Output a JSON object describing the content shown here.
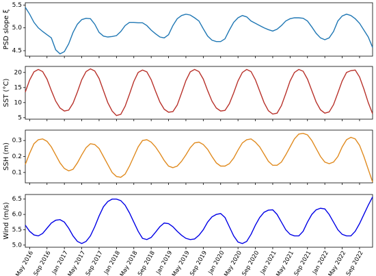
{
  "chart_data": [
    {
      "type": "line",
      "ylabel": "PSD slope ξ",
      "color": "#1f77b4",
      "x": [
        "2016-04",
        "2016-05",
        "2016-06",
        "2016-07",
        "2016-08",
        "2016-09",
        "2016-10",
        "2016-11",
        "2016-12",
        "2017-01",
        "2017-02",
        "2017-03",
        "2017-04",
        "2017-05",
        "2017-06",
        "2017-07",
        "2017-08",
        "2017-09",
        "2017-10",
        "2017-11",
        "2017-12",
        "2018-01",
        "2018-02",
        "2018-03",
        "2018-04",
        "2018-05",
        "2018-06",
        "2018-07",
        "2018-08",
        "2018-09",
        "2018-10",
        "2018-11",
        "2018-12",
        "2019-01",
        "2019-02",
        "2019-03",
        "2019-04",
        "2019-05",
        "2019-06",
        "2019-07",
        "2019-08",
        "2019-09",
        "2019-10",
        "2019-11",
        "2019-12",
        "2020-01",
        "2020-02",
        "2020-03",
        "2020-04",
        "2020-05",
        "2020-06",
        "2020-07",
        "2020-08",
        "2020-09",
        "2020-10",
        "2020-11",
        "2020-12",
        "2021-01",
        "2021-02",
        "2021-03",
        "2021-04",
        "2021-05",
        "2021-06",
        "2021-07",
        "2021-08",
        "2021-09",
        "2021-10",
        "2021-11",
        "2021-12",
        "2022-01",
        "2022-02",
        "2022-03",
        "2022-04",
        "2022-05",
        "2022-06",
        "2022-07",
        "2022-08",
        "2022-09",
        "2022-10",
        "2022-11",
        "2022-12"
      ],
      "values": [
        5.45,
        5.3,
        5.12,
        5.0,
        4.92,
        4.85,
        4.78,
        4.52,
        4.43,
        4.48,
        4.65,
        4.9,
        5.08,
        5.18,
        5.21,
        5.2,
        5.08,
        4.9,
        4.82,
        4.8,
        4.81,
        4.83,
        4.92,
        5.05,
        5.12,
        5.12,
        5.11,
        5.11,
        5.05,
        4.95,
        4.87,
        4.8,
        4.78,
        4.85,
        5.05,
        5.2,
        5.27,
        5.3,
        5.28,
        5.22,
        5.15,
        4.98,
        4.82,
        4.73,
        4.7,
        4.7,
        4.76,
        4.95,
        5.12,
        5.22,
        5.27,
        5.24,
        5.15,
        5.1,
        5.05,
        5.0,
        4.96,
        4.93,
        4.97,
        5.05,
        5.15,
        5.2,
        5.22,
        5.22,
        5.21,
        5.15,
        5.02,
        4.88,
        4.78,
        4.74,
        4.78,
        4.92,
        5.15,
        5.26,
        5.3,
        5.27,
        5.2,
        5.1,
        4.95,
        4.8,
        4.57
      ],
      "xlim": [
        "2016-04",
        "2022-12"
      ],
      "ylim": [
        4.38,
        5.55
      ],
      "yticks": [
        4.5,
        {
          "value": 5,
          "label": "5.0"
        },
        5.5
      ]
    },
    {
      "type": "line",
      "ylabel": "SST (°C)",
      "color": "#b8312a",
      "x": [
        "2016-04",
        "2016-05",
        "2016-06",
        "2016-07",
        "2016-08",
        "2016-09",
        "2016-10",
        "2016-11",
        "2016-12",
        "2017-01",
        "2017-02",
        "2017-03",
        "2017-04",
        "2017-05",
        "2017-06",
        "2017-07",
        "2017-08",
        "2017-09",
        "2017-10",
        "2017-11",
        "2017-12",
        "2018-01",
        "2018-02",
        "2018-03",
        "2018-04",
        "2018-05",
        "2018-06",
        "2018-07",
        "2018-08",
        "2018-09",
        "2018-10",
        "2018-11",
        "2018-12",
        "2019-01",
        "2019-02",
        "2019-03",
        "2019-04",
        "2019-05",
        "2019-06",
        "2019-07",
        "2019-08",
        "2019-09",
        "2019-10",
        "2019-11",
        "2019-12",
        "2020-01",
        "2020-02",
        "2020-03",
        "2020-04",
        "2020-05",
        "2020-06",
        "2020-07",
        "2020-08",
        "2020-09",
        "2020-10",
        "2020-11",
        "2020-12",
        "2021-01",
        "2021-02",
        "2021-03",
        "2021-04",
        "2021-05",
        "2021-06",
        "2021-07",
        "2021-08",
        "2021-09",
        "2021-10",
        "2021-11",
        "2021-12",
        "2022-01",
        "2022-02",
        "2022-03",
        "2022-04",
        "2022-05",
        "2022-06",
        "2022-07",
        "2022-08",
        "2022-09",
        "2022-10",
        "2022-11",
        "2022-12"
      ],
      "values": [
        13.5,
        17.5,
        20.2,
        21,
        20.3,
        17.8,
        14,
        10.5,
        8.2,
        7.2,
        7.5,
        9.8,
        13.5,
        17.6,
        20.3,
        21.2,
        20.5,
        18,
        14,
        10,
        7.2,
        5.7,
        6.1,
        8.8,
        12.8,
        17,
        20,
        20.8,
        20.2,
        17.6,
        13.8,
        10.2,
        7.8,
        6.8,
        7.0,
        9.2,
        13.2,
        17.3,
        20.2,
        21,
        20.3,
        17.8,
        14,
        10.5,
        8.2,
        7.2,
        7.4,
        9.6,
        13.2,
        17.2,
        20,
        21,
        20.3,
        17.6,
        13.8,
        10,
        7.3,
        6.2,
        6.5,
        9,
        13,
        17.2,
        20,
        21,
        20.4,
        17.8,
        14,
        10.2,
        7.6,
        6.5,
        6.9,
        9.3,
        13.2,
        17.2,
        20,
        20.6,
        20.8,
        18.5,
        14.5,
        10,
        6.3
      ],
      "xlim": [
        "2016-04",
        "2022-12"
      ],
      "ylim": [
        4.5,
        22
      ],
      "yticks": [
        5,
        10,
        15,
        20
      ]
    },
    {
      "type": "line",
      "ylabel": "SSH (m)",
      "color": "#e08a1e",
      "x": [
        "2016-04",
        "2016-05",
        "2016-06",
        "2016-07",
        "2016-08",
        "2016-09",
        "2016-10",
        "2016-11",
        "2016-12",
        "2017-01",
        "2017-02",
        "2017-03",
        "2017-04",
        "2017-05",
        "2017-06",
        "2017-07",
        "2017-08",
        "2017-09",
        "2017-10",
        "2017-11",
        "2017-12",
        "2018-01",
        "2018-02",
        "2018-03",
        "2018-04",
        "2018-05",
        "2018-06",
        "2018-07",
        "2018-08",
        "2018-09",
        "2018-10",
        "2018-11",
        "2018-12",
        "2019-01",
        "2019-02",
        "2019-03",
        "2019-04",
        "2019-05",
        "2019-06",
        "2019-07",
        "2019-08",
        "2019-09",
        "2019-10",
        "2019-11",
        "2019-12",
        "2020-01",
        "2020-02",
        "2020-03",
        "2020-04",
        "2020-05",
        "2020-06",
        "2020-07",
        "2020-08",
        "2020-09",
        "2020-10",
        "2020-11",
        "2020-12",
        "2021-01",
        "2021-02",
        "2021-03",
        "2021-04",
        "2021-05",
        "2021-06",
        "2021-07",
        "2021-08",
        "2021-09",
        "2021-10",
        "2021-11",
        "2021-12",
        "2022-01",
        "2022-02",
        "2022-03",
        "2022-04",
        "2022-05",
        "2022-06",
        "2022-07",
        "2022-08",
        "2022-09",
        "2022-10",
        "2022-11",
        "2022-12"
      ],
      "values": [
        0.15,
        0.22,
        0.28,
        0.305,
        0.31,
        0.295,
        0.26,
        0.21,
        0.16,
        0.125,
        0.11,
        0.12,
        0.16,
        0.21,
        0.255,
        0.28,
        0.275,
        0.25,
        0.2,
        0.15,
        0.1,
        0.075,
        0.07,
        0.09,
        0.14,
        0.2,
        0.26,
        0.3,
        0.305,
        0.29,
        0.26,
        0.22,
        0.175,
        0.14,
        0.13,
        0.14,
        0.17,
        0.21,
        0.255,
        0.285,
        0.29,
        0.275,
        0.245,
        0.2,
        0.16,
        0.14,
        0.14,
        0.155,
        0.19,
        0.24,
        0.285,
        0.305,
        0.31,
        0.29,
        0.26,
        0.215,
        0.17,
        0.145,
        0.145,
        0.165,
        0.21,
        0.26,
        0.31,
        0.34,
        0.345,
        0.335,
        0.3,
        0.25,
        0.2,
        0.165,
        0.155,
        0.165,
        0.2,
        0.26,
        0.305,
        0.32,
        0.31,
        0.27,
        0.2,
        0.12,
        0.04
      ],
      "xlim": [
        "2016-04",
        "2022-12"
      ],
      "ylim": [
        0.035,
        0.365
      ],
      "yticks": [
        0.1,
        0.2,
        0.3
      ]
    },
    {
      "type": "line",
      "ylabel": "Wind (m/s)",
      "color": "#0000e6",
      "x": [
        "2016-04",
        "2016-05",
        "2016-06",
        "2016-07",
        "2016-08",
        "2016-09",
        "2016-10",
        "2016-11",
        "2016-12",
        "2017-01",
        "2017-02",
        "2017-03",
        "2017-04",
        "2017-05",
        "2017-06",
        "2017-07",
        "2017-08",
        "2017-09",
        "2017-10",
        "2017-11",
        "2017-12",
        "2018-01",
        "2018-02",
        "2018-03",
        "2018-04",
        "2018-05",
        "2018-06",
        "2018-07",
        "2018-08",
        "2018-09",
        "2018-10",
        "2018-11",
        "2018-12",
        "2019-01",
        "2019-02",
        "2019-03",
        "2019-04",
        "2019-05",
        "2019-06",
        "2019-07",
        "2019-08",
        "2019-09",
        "2019-10",
        "2019-11",
        "2019-12",
        "2020-01",
        "2020-02",
        "2020-03",
        "2020-04",
        "2020-05",
        "2020-06",
        "2020-07",
        "2020-08",
        "2020-09",
        "2020-10",
        "2020-11",
        "2020-12",
        "2021-01",
        "2021-02",
        "2021-03",
        "2021-04",
        "2021-05",
        "2021-06",
        "2021-07",
        "2021-08",
        "2021-09",
        "2021-10",
        "2021-11",
        "2021-12",
        "2022-01",
        "2022-02",
        "2022-03",
        "2022-04",
        "2022-05",
        "2022-06",
        "2022-07",
        "2022-08",
        "2022-09",
        "2022-10",
        "2022-11",
        "2022-12"
      ],
      "values": [
        5.65,
        5.45,
        5.33,
        5.3,
        5.38,
        5.55,
        5.72,
        5.81,
        5.83,
        5.75,
        5.55,
        5.3,
        5.12,
        5.05,
        5.12,
        5.3,
        5.6,
        5.95,
        6.25,
        6.42,
        6.5,
        6.5,
        6.45,
        6.3,
        6.05,
        5.75,
        5.45,
        5.22,
        5.18,
        5.25,
        5.42,
        5.6,
        5.72,
        5.7,
        5.6,
        5.45,
        5.32,
        5.22,
        5.18,
        5.2,
        5.32,
        5.5,
        5.75,
        5.92,
        6.0,
        6.03,
        5.9,
        5.6,
        5.3,
        5.1,
        5.05,
        5.12,
        5.35,
        5.65,
        5.9,
        6.07,
        6.14,
        6.15,
        6.0,
        5.75,
        5.5,
        5.35,
        5.3,
        5.3,
        5.45,
        5.75,
        6.0,
        6.15,
        6.2,
        6.18,
        6.0,
        5.75,
        5.5,
        5.35,
        5.3,
        5.3,
        5.45,
        5.7,
        6.0,
        6.3,
        6.57
      ],
      "xlim": [
        "2016-04",
        "2022-12"
      ],
      "ylim": [
        4.93,
        6.65
      ],
      "yticks": [
        {
          "value": 5,
          "label": "5.0"
        },
        5.5,
        {
          "value": 6,
          "label": "6.0"
        },
        6.5
      ],
      "xticks": [
        {
          "value": "2016-05",
          "label": "May 2016"
        },
        {
          "value": "2016-09",
          "label": "Sep 2016"
        },
        {
          "value": "2017-01",
          "label": "Jan 2017"
        },
        {
          "value": "2017-05",
          "label": "May 2017"
        },
        {
          "value": "2017-09",
          "label": "Sep 2017"
        },
        {
          "value": "2018-01",
          "label": "Jan 2018"
        },
        {
          "value": "2018-05",
          "label": "May 2018"
        },
        {
          "value": "2018-09",
          "label": "Sep 2018"
        },
        {
          "value": "2019-01",
          "label": "Jan 2019"
        },
        {
          "value": "2019-05",
          "label": "May 2019"
        },
        {
          "value": "2019-09",
          "label": "Sep 2019"
        },
        {
          "value": "2020-01",
          "label": "Jan 2020"
        },
        {
          "value": "2020-05",
          "label": "May 2020"
        },
        {
          "value": "2020-09",
          "label": "Sep 2020"
        },
        {
          "value": "2021-01",
          "label": "Jan 2021"
        },
        {
          "value": "2021-05",
          "label": "May 2021"
        },
        {
          "value": "2021-09",
          "label": "Sep 2021"
        },
        {
          "value": "2022-01",
          "label": "Jan 2022"
        },
        {
          "value": "2022-05",
          "label": "May 2022"
        },
        {
          "value": "2022-09",
          "label": "Sep 2022"
        }
      ]
    }
  ]
}
